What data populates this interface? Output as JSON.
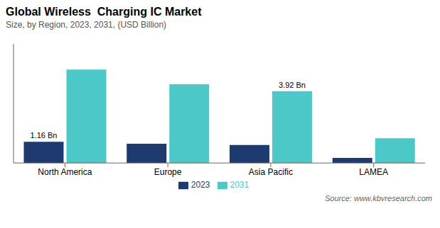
{
  "chart_data": {
    "type": "bar",
    "title": "Global Wireless  Charging IC Market",
    "subtitle": "Size, by Region, 2023, 2031, (USD Billion)",
    "source": "Source: www.kbvresearch.com",
    "categories": [
      "North America",
      "Europe",
      "Asia Pacific",
      "LAMEA"
    ],
    "series": [
      {
        "name": "2023",
        "color": "#1e3a6e",
        "values": [
          1.16,
          1.05,
          0.98,
          0.28
        ]
      },
      {
        "name": "2031",
        "color": "#4dc8c8",
        "values": [
          5.1,
          4.3,
          3.92,
          1.35
        ]
      }
    ],
    "annotations": [
      {
        "text": "1.16 Bn",
        "category": "North America",
        "series": "2023"
      },
      {
        "text": "3.92 Bn",
        "category": "Asia Pacific",
        "series": "2031"
      }
    ],
    "ylim": [
      0,
      6.5
    ],
    "tick_labels": "x",
    "grid": false,
    "legend": "bottom"
  }
}
